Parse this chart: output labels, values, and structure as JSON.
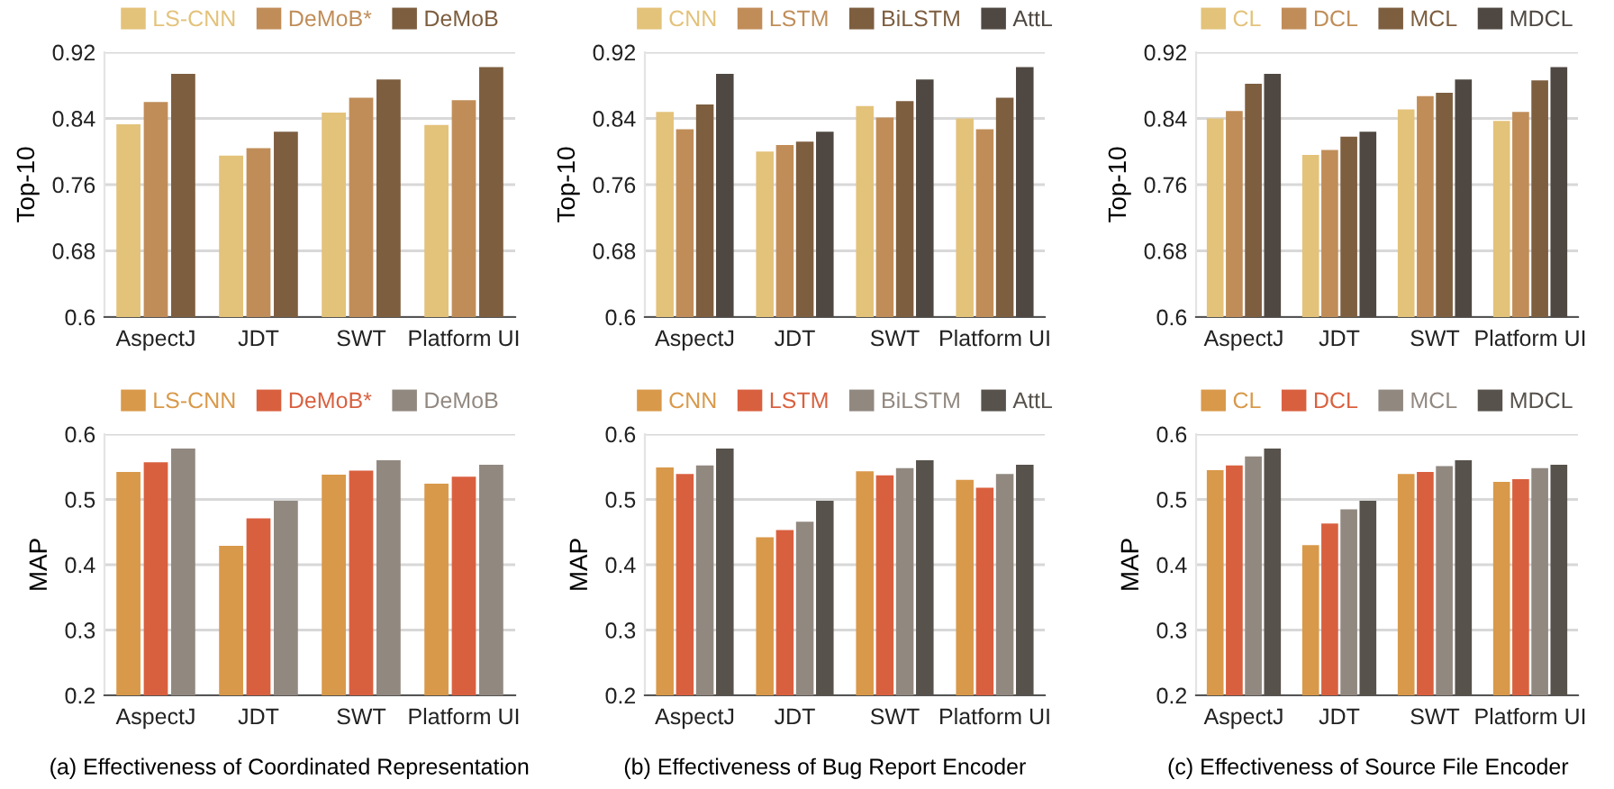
{
  "chart_data": [
    {
      "type": "bar",
      "ylabel": "Top-10",
      "categories": [
        "AspectJ",
        "JDT",
        "SWT",
        "Platform UI"
      ],
      "ylim": [
        0.6,
        0.92
      ],
      "yticks": [
        0.6,
        0.68,
        0.76,
        0.84,
        0.92
      ],
      "grid": "y",
      "legend": "top",
      "series": [
        {
          "name": "LS-CNN",
          "color": "#e3c27a",
          "values": [
            0.833,
            0.795,
            0.847,
            0.832
          ]
        },
        {
          "name": "DeMoB*",
          "color": "#c08d58",
          "values": [
            0.86,
            0.804,
            0.865,
            0.862
          ]
        },
        {
          "name": "DeMoB",
          "color": "#7d5e3f",
          "values": [
            0.894,
            0.824,
            0.887,
            0.902
          ]
        }
      ]
    },
    {
      "type": "bar",
      "ylabel": "Top-10",
      "categories": [
        "AspectJ",
        "JDT",
        "SWT",
        "Platform UI"
      ],
      "ylim": [
        0.6,
        0.92
      ],
      "yticks": [
        0.6,
        0.68,
        0.76,
        0.84,
        0.92
      ],
      "grid": "y",
      "legend": "top",
      "series": [
        {
          "name": "CNN",
          "color": "#e3c27a",
          "values": [
            0.848,
            0.8,
            0.855,
            0.84
          ]
        },
        {
          "name": "LSTM",
          "color": "#c08d58",
          "values": [
            0.827,
            0.808,
            0.841,
            0.827
          ]
        },
        {
          "name": "BiLSTM",
          "color": "#7d5e3f",
          "values": [
            0.857,
            0.812,
            0.861,
            0.865
          ]
        },
        {
          "name": "AttL",
          "color": "#4f4842",
          "values": [
            0.894,
            0.824,
            0.887,
            0.902
          ]
        }
      ]
    },
    {
      "type": "bar",
      "ylabel": "Top-10",
      "categories": [
        "AspectJ",
        "JDT",
        "SWT",
        "Platform UI"
      ],
      "ylim": [
        0.6,
        0.92
      ],
      "yticks": [
        0.6,
        0.68,
        0.76,
        0.84,
        0.92
      ],
      "grid": "y",
      "legend": "top",
      "series": [
        {
          "name": "CL",
          "color": "#e3c27a",
          "values": [
            0.84,
            0.796,
            0.851,
            0.837
          ]
        },
        {
          "name": "DCL",
          "color": "#c08d58",
          "values": [
            0.849,
            0.802,
            0.867,
            0.848
          ]
        },
        {
          "name": "MCL",
          "color": "#7d5e3f",
          "values": [
            0.882,
            0.818,
            0.871,
            0.886
          ]
        },
        {
          "name": "MDCL",
          "color": "#4f4842",
          "values": [
            0.894,
            0.824,
            0.887,
            0.902
          ]
        }
      ]
    },
    {
      "type": "bar",
      "ylabel": "MAP",
      "categories": [
        "AspectJ",
        "JDT",
        "SWT",
        "Platform UI"
      ],
      "ylim": [
        0.2,
        0.6
      ],
      "yticks": [
        0.2,
        0.3,
        0.4,
        0.5,
        0.6
      ],
      "grid": "y",
      "legend": "top",
      "annotations": [
        "(a) Effectiveness of Coordinated Representation"
      ],
      "series": [
        {
          "name": "LS-CNN",
          "color": "#d9994a",
          "values": [
            0.542,
            0.429,
            0.538,
            0.524
          ]
        },
        {
          "name": "DeMoB*",
          "color": "#d9603f",
          "values": [
            0.557,
            0.471,
            0.544,
            0.535
          ]
        },
        {
          "name": "DeMoB",
          "color": "#918880",
          "values": [
            0.578,
            0.498,
            0.56,
            0.553
          ]
        }
      ]
    },
    {
      "type": "bar",
      "ylabel": "MAP",
      "categories": [
        "AspectJ",
        "JDT",
        "SWT",
        "Platform UI"
      ],
      "ylim": [
        0.2,
        0.6
      ],
      "yticks": [
        0.2,
        0.3,
        0.4,
        0.5,
        0.6
      ],
      "grid": "y",
      "legend": "top",
      "annotations": [
        "(b) Effectiveness of Bug Report Encoder"
      ],
      "series": [
        {
          "name": "CNN",
          "color": "#d9994a",
          "values": [
            0.549,
            0.442,
            0.543,
            0.53
          ]
        },
        {
          "name": "LSTM",
          "color": "#d9603f",
          "values": [
            0.539,
            0.453,
            0.537,
            0.518
          ]
        },
        {
          "name": "BiLSTM",
          "color": "#918880",
          "values": [
            0.552,
            0.466,
            0.548,
            0.539
          ]
        },
        {
          "name": "AttL",
          "color": "#57524c",
          "values": [
            0.578,
            0.498,
            0.56,
            0.553
          ]
        }
      ]
    },
    {
      "type": "bar",
      "ylabel": "MAP",
      "categories": [
        "AspectJ",
        "JDT",
        "SWT",
        "Platform UI"
      ],
      "ylim": [
        0.2,
        0.6
      ],
      "yticks": [
        0.2,
        0.3,
        0.4,
        0.5,
        0.6
      ],
      "grid": "y",
      "legend": "top",
      "annotations": [
        "(c) Effectiveness of Source File Encoder"
      ],
      "series": [
        {
          "name": "CL",
          "color": "#d9994a",
          "values": [
            0.545,
            0.43,
            0.539,
            0.527
          ]
        },
        {
          "name": "DCL",
          "color": "#d9603f",
          "values": [
            0.552,
            0.463,
            0.542,
            0.531
          ]
        },
        {
          "name": "MCL",
          "color": "#918880",
          "values": [
            0.566,
            0.485,
            0.551,
            0.548
          ]
        },
        {
          "name": "MDCL",
          "color": "#57524c",
          "values": [
            0.578,
            0.498,
            0.56,
            0.553
          ]
        }
      ]
    }
  ]
}
